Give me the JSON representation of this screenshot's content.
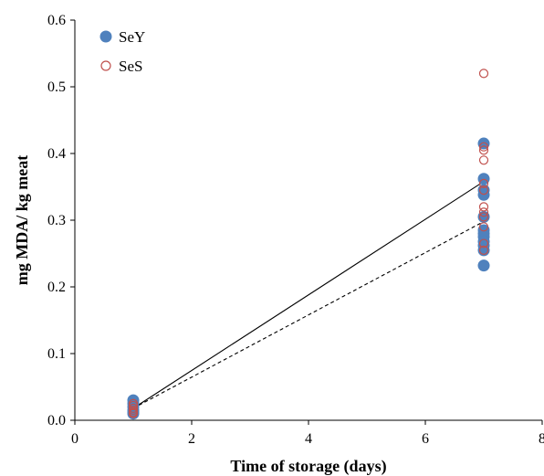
{
  "chart_data": {
    "type": "scatter",
    "xlabel": "Time of storage (days)",
    "ylabel": "mg MDA/ kg meat",
    "xlim": [
      0,
      8
    ],
    "ylim": [
      0,
      0.6
    ],
    "xticks": [
      0,
      2,
      4,
      6,
      8
    ],
    "yticks": [
      0.0,
      0.1,
      0.2,
      0.3,
      0.4,
      0.5,
      0.6
    ],
    "ytick_labels": [
      "0.0",
      "0.1",
      "0.2",
      "0.3",
      "0.4",
      "0.5",
      "0.6"
    ],
    "grid": false,
    "legend_position": "top-left",
    "series": [
      {
        "name": "SeY",
        "marker": "filled-circle",
        "color": "#4f81bd",
        "x": [
          1,
          1,
          1,
          1,
          1,
          1,
          7,
          7,
          7,
          7,
          7,
          7,
          7,
          7,
          7,
          7,
          7,
          7
        ],
        "y": [
          0.03,
          0.025,
          0.02,
          0.015,
          0.012,
          0.01,
          0.415,
          0.362,
          0.345,
          0.338,
          0.305,
          0.285,
          0.28,
          0.275,
          0.268,
          0.262,
          0.255,
          0.232
        ]
      },
      {
        "name": "SeS",
        "marker": "open-circle",
        "color": "#c0504d",
        "x": [
          1,
          1,
          1,
          1,
          1,
          1,
          7,
          7,
          7,
          7,
          7,
          7,
          7,
          7,
          7,
          7,
          7,
          7
        ],
        "y": [
          0.025,
          0.022,
          0.018,
          0.015,
          0.012,
          0.01,
          0.52,
          0.41,
          0.405,
          0.39,
          0.355,
          0.345,
          0.32,
          0.312,
          0.305,
          0.29,
          0.265,
          0.255
        ]
      }
    ],
    "trendlines": [
      {
        "series": "SeY",
        "style": "solid",
        "x": [
          1,
          7
        ],
        "y": [
          0.018,
          0.358
        ]
      },
      {
        "series": "SeS",
        "style": "dashed",
        "x": [
          1,
          7
        ],
        "y": [
          0.018,
          0.298
        ]
      }
    ]
  }
}
